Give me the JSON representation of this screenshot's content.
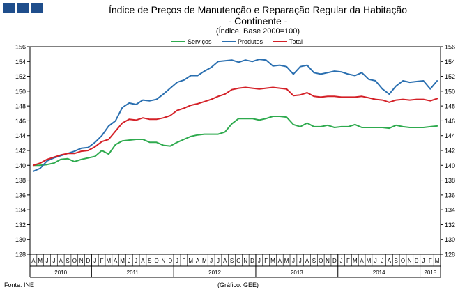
{
  "header": {
    "title": "Índice de Preços de Manutenção e Reparação Regular da Habitação",
    "subtitle": "- Continente -",
    "base": "(Índice, Base 2000=100)"
  },
  "footer": {
    "source": "Fonte: INE",
    "graph_credit": "(Gráfico: GEE)"
  },
  "colors": {
    "servicos": "#2eaa4e",
    "produtos": "#2a6fb0",
    "total": "#d42027",
    "logo": "#1f4e8c"
  },
  "chart_data": {
    "type": "line",
    "title": "Índice de Preços de Manutenção e Reparação Regular da Habitação - Continente - (Índice, Base 2000=100)",
    "ylim": [
      128,
      156
    ],
    "yticks": [
      128,
      130,
      132,
      134,
      136,
      138,
      140,
      142,
      144,
      146,
      148,
      150,
      152,
      154,
      156
    ],
    "legend_position": "top-center",
    "months": [
      "A",
      "M",
      "J",
      "J",
      "A",
      "S",
      "O",
      "N",
      "D",
      "J",
      "F",
      "M",
      "A",
      "M",
      "J",
      "J",
      "A",
      "S",
      "O",
      "N",
      "D",
      "J",
      "F",
      "M",
      "A",
      "M",
      "J",
      "J",
      "A",
      "S",
      "O",
      "N",
      "D",
      "J",
      "F",
      "M",
      "A",
      "M",
      "J",
      "J",
      "A",
      "S",
      "O",
      "N",
      "D",
      "J",
      "F",
      "M",
      "A",
      "M",
      "J",
      "J",
      "A",
      "S",
      "O",
      "N",
      "D",
      "J",
      "F",
      "M"
    ],
    "years": [
      {
        "label": "2010",
        "months": 9
      },
      {
        "label": "2011",
        "months": 12
      },
      {
        "label": "2012",
        "months": 12
      },
      {
        "label": "2013",
        "months": 12
      },
      {
        "label": "2014",
        "months": 12
      },
      {
        "label": "2015",
        "months": 3
      }
    ],
    "series": [
      {
        "name": "Serviços",
        "color": "#2eaa4e",
        "values": [
          140.0,
          140.0,
          140.1,
          140.3,
          140.8,
          140.9,
          140.5,
          140.8,
          141.0,
          141.2,
          142.0,
          141.5,
          142.8,
          143.3,
          143.4,
          143.5,
          143.5,
          143.1,
          143.1,
          142.7,
          142.6,
          143.1,
          143.5,
          143.9,
          144.1,
          144.2,
          144.2,
          144.2,
          144.5,
          145.6,
          146.3,
          146.3,
          146.3,
          146.1,
          146.3,
          146.6,
          146.6,
          146.5,
          145.5,
          145.2,
          145.7,
          145.2,
          145.2,
          145.4,
          145.1,
          145.2,
          145.2,
          145.5,
          145.1,
          145.1,
          145.1,
          145.1,
          145.0,
          145.4,
          145.2,
          145.1,
          145.1,
          145.1,
          145.2,
          145.3
        ]
      },
      {
        "name": "Produtos",
        "color": "#2a6fb0",
        "values": [
          139.2,
          139.6,
          140.6,
          141.0,
          141.3,
          141.6,
          141.9,
          142.3,
          142.4,
          143.1,
          144.0,
          145.3,
          146.0,
          147.8,
          148.4,
          148.2,
          148.8,
          148.7,
          148.9,
          149.6,
          150.4,
          151.2,
          151.5,
          152.1,
          152.1,
          152.7,
          153.2,
          154.0,
          154.1,
          154.2,
          153.9,
          154.2,
          154.0,
          154.3,
          154.2,
          153.4,
          153.5,
          153.3,
          152.3,
          153.3,
          153.5,
          152.5,
          152.3,
          152.5,
          152.7,
          152.6,
          152.3,
          152.1,
          152.5,
          151.6,
          151.4,
          150.3,
          149.6,
          150.7,
          151.4,
          151.2,
          151.3,
          151.4,
          150.3,
          151.4
        ]
      },
      {
        "name": "Total",
        "color": "#d42027",
        "values": [
          140.0,
          140.3,
          140.8,
          141.1,
          141.4,
          141.6,
          141.6,
          141.9,
          142.0,
          142.5,
          143.2,
          143.5,
          144.6,
          145.7,
          146.2,
          146.1,
          146.4,
          146.2,
          146.2,
          146.4,
          146.7,
          147.4,
          147.7,
          148.1,
          148.3,
          148.6,
          148.9,
          149.3,
          149.6,
          150.2,
          150.4,
          150.5,
          150.4,
          150.3,
          150.4,
          150.5,
          150.4,
          150.3,
          149.4,
          149.5,
          149.8,
          149.3,
          149.2,
          149.3,
          149.3,
          149.2,
          149.2,
          149.2,
          149.3,
          149.1,
          148.9,
          148.8,
          148.5,
          148.8,
          148.9,
          148.8,
          148.9,
          148.9,
          148.7,
          149.0
        ]
      }
    ]
  }
}
